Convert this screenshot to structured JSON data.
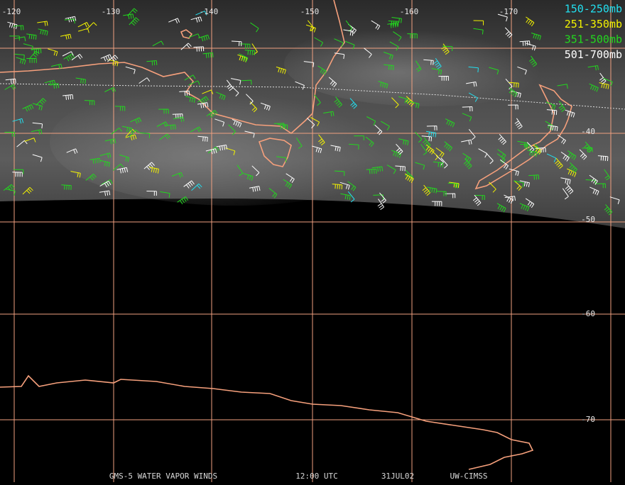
{
  "map": {
    "longitude_labels": [
      "-120",
      "-130",
      "-140",
      "-150",
      "-160",
      "-170"
    ],
    "latitude_labels": [
      "-40",
      "-50",
      "-60",
      "-70"
    ],
    "legend": [
      {
        "label": "150-250mb",
        "color": "#22e0f0"
      },
      {
        "label": "251-350mb",
        "color": "#f4f400"
      },
      {
        "label": "351-500mb",
        "color": "#22d81e"
      },
      {
        "label": "501-700mb",
        "color": "#ffffff"
      }
    ],
    "footer": [
      "GMS-5 WATER VAPOR WINDS",
      "12:00 UTC",
      "31JUL02",
      "UW-CIMSS"
    ],
    "grid_color": "#f0a080",
    "coast_color": "#f6a07c"
  }
}
